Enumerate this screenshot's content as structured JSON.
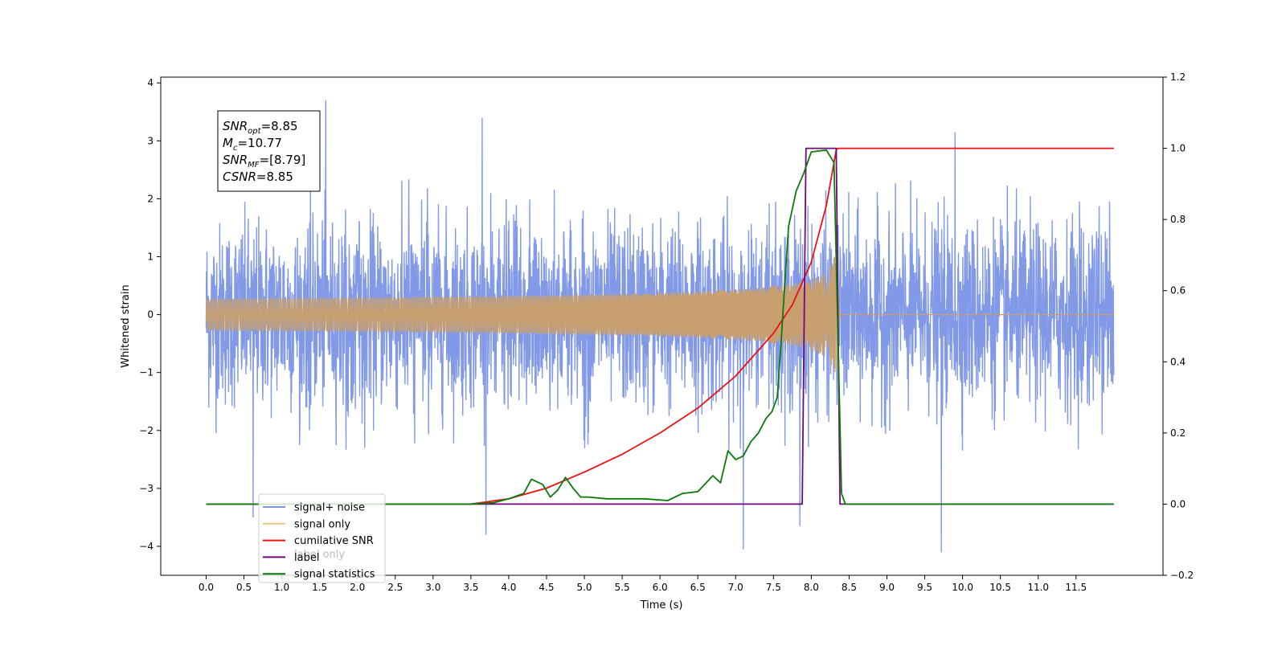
{
  "chart_data": {
    "type": "line",
    "xlabel": "Time (s)",
    "ylabel": "Whitened strain",
    "xlim": [
      -0.6,
      12.65
    ],
    "ylim": [
      -4.5,
      4.1
    ],
    "y2lim": [
      -0.2,
      1.2
    ],
    "x_ticks": [
      "0.0",
      "0.5",
      "1.0",
      "1.5",
      "2.0",
      "2.5",
      "3.0",
      "3.5",
      "4.0",
      "4.5",
      "5.0",
      "5.5",
      "6.0",
      "6.5",
      "7.0",
      "7.5",
      "8.0",
      "8.5",
      "9.0",
      "9.5",
      "10.0",
      "10.5",
      "11.0",
      "11.5"
    ],
    "x_tick_values": [
      0,
      0.5,
      1,
      1.5,
      2,
      2.5,
      3,
      3.5,
      4,
      4.5,
      5,
      5.5,
      6,
      6.5,
      7,
      7.5,
      8,
      8.5,
      9,
      9.5,
      10,
      10.5,
      11,
      11.5
    ],
    "y_ticks": [
      "4",
      "3",
      "2",
      "1",
      "0",
      "−1",
      "−2",
      "−3",
      "−4"
    ],
    "y_tick_values": [
      4,
      3,
      2,
      1,
      0,
      -1,
      -2,
      -3,
      -4
    ],
    "y2_ticks": [
      "1.2",
      "1.0",
      "0.8",
      "0.6",
      "0.4",
      "0.2",
      "0.0",
      "−0.2"
    ],
    "y2_tick_values": [
      1.2,
      1.0,
      0.8,
      0.6,
      0.4,
      0.2,
      0.0,
      -0.2
    ],
    "annotation": {
      "lines": [
        {
          "main": "SNR",
          "sub": "opt",
          "value": "=8.85"
        },
        {
          "main": "M",
          "sub": "c",
          "value": "=10.77"
        },
        {
          "main": "SNR",
          "sub": "MF",
          "value": "=[8.79]"
        },
        {
          "main": "CSNR",
          "sub": "",
          "value": "=8.85"
        }
      ]
    },
    "legend": {
      "placement": "lower-left",
      "entries": [
        {
          "label": "signal+ noise",
          "color": "#7a93e6"
        },
        {
          "label": "signal only",
          "color": "#f5c27a"
        },
        {
          "label": "cumilative SNR",
          "color": "#ee1111"
        },
        {
          "label": "label",
          "color": "#6e0a78"
        },
        {
          "label": "signal statistics",
          "color": "#0a7a0a"
        }
      ],
      "overlapped_text": "label only"
    },
    "series": [
      {
        "name": "signal+ noise",
        "axis": "left",
        "color": "#7a93e6",
        "x_range": [
          0,
          12
        ],
        "noise_sigma": 1.0,
        "peaks": [
          [
            1.58,
            3.7
          ],
          [
            0.62,
            -3.5
          ],
          [
            3.7,
            -3.8
          ],
          [
            7.1,
            -4.05
          ],
          [
            9.72,
            -4.1
          ],
          [
            7.85,
            -3.65
          ],
          [
            9.9,
            3.15
          ],
          [
            3.65,
            3.4
          ]
        ]
      },
      {
        "name": "signal only",
        "axis": "left",
        "color": "#c8a070",
        "x_range": [
          0,
          12
        ],
        "merger_time": 8.35,
        "peak_amplitude": 1.05
      },
      {
        "name": "cumilative SNR",
        "axis": "right",
        "color": "#ee1111",
        "x": [
          0,
          3.5,
          4.0,
          4.5,
          5.0,
          5.5,
          6.0,
          6.5,
          7.0,
          7.25,
          7.5,
          7.75,
          8.0,
          8.2,
          8.33,
          8.35,
          12
        ],
        "y": [
          0,
          0.0,
          0.015,
          0.045,
          0.09,
          0.14,
          0.2,
          0.27,
          0.36,
          0.42,
          0.48,
          0.56,
          0.68,
          0.84,
          0.995,
          1.0,
          1.0
        ]
      },
      {
        "name": "label",
        "axis": "right",
        "color": "#6e0a78",
        "x": [
          0,
          7.88,
          7.93,
          8.33,
          8.38,
          12
        ],
        "y": [
          0,
          0,
          1.0,
          1.0,
          0,
          0
        ]
      },
      {
        "name": "signal statistics",
        "axis": "right",
        "color": "#0a7a0a",
        "x": [
          0,
          3.0,
          3.5,
          3.8,
          4.0,
          4.2,
          4.3,
          4.45,
          4.55,
          4.65,
          4.75,
          4.85,
          4.95,
          5.05,
          5.3,
          5.8,
          6.1,
          6.3,
          6.5,
          6.7,
          6.8,
          6.9,
          7.0,
          7.1,
          7.2,
          7.3,
          7.4,
          7.48,
          7.55,
          7.6,
          7.65,
          7.7,
          7.8,
          7.9,
          8.0,
          8.2,
          8.3,
          8.35,
          8.4,
          8.45,
          8.5,
          12
        ],
        "y": [
          0,
          0.0,
          0.0,
          0.004,
          0.015,
          0.03,
          0.07,
          0.055,
          0.02,
          0.04,
          0.075,
          0.045,
          0.02,
          0.02,
          0.015,
          0.015,
          0.01,
          0.03,
          0.035,
          0.08,
          0.06,
          0.15,
          0.125,
          0.135,
          0.175,
          0.2,
          0.24,
          0.26,
          0.3,
          0.45,
          0.62,
          0.78,
          0.88,
          0.93,
          0.99,
          0.995,
          0.96,
          0.5,
          0.03,
          0.0,
          0.0,
          0.0
        ]
      }
    ]
  }
}
